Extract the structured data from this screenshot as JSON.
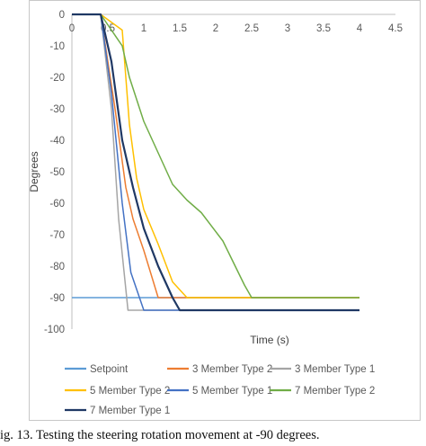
{
  "caption": "ig. 13.  Testing the steering rotation movement at -90 degrees.",
  "chart_data": {
    "type": "line",
    "xlabel": "Time (s)",
    "ylabel": "Degrees",
    "xlim": [
      0,
      4.5
    ],
    "ylim": [
      -100,
      0
    ],
    "x_ticks": [
      "0",
      "0.5",
      "1",
      "1.5",
      "2",
      "2.5",
      "3",
      "3.5",
      "4",
      "4.5"
    ],
    "y_ticks": [
      "0",
      "-10",
      "-20",
      "-30",
      "-40",
      "-50",
      "-60",
      "-70",
      "-80",
      "-90",
      "-100"
    ],
    "x_axis_position": "top",
    "grid": false,
    "legend_position": "bottom",
    "series": [
      {
        "name": "Setpoint",
        "color": "#5b9bd5",
        "width": 1.5,
        "points": [
          [
            0,
            -90
          ],
          [
            4,
            -90
          ]
        ]
      },
      {
        "name": "3 Member Type 2",
        "color": "#ed7d31",
        "width": 1.5,
        "points": [
          [
            0,
            0
          ],
          [
            0.4,
            0
          ],
          [
            0.6,
            -30
          ],
          [
            0.75,
            -55
          ],
          [
            0.85,
            -65
          ],
          [
            1.0,
            -75
          ],
          [
            1.2,
            -90
          ],
          [
            4,
            -90
          ]
        ]
      },
      {
        "name": "3 Member Type 1",
        "color": "#a5a5a5",
        "width": 1.5,
        "points": [
          [
            0,
            0
          ],
          [
            0.4,
            0
          ],
          [
            0.55,
            -30
          ],
          [
            0.65,
            -65
          ],
          [
            0.78,
            -94
          ],
          [
            4,
            -94
          ]
        ]
      },
      {
        "name": "5 Member Type 2",
        "color": "#ffc000",
        "width": 1.5,
        "points": [
          [
            0,
            0
          ],
          [
            0.4,
            0
          ],
          [
            0.7,
            -5
          ],
          [
            0.8,
            -35
          ],
          [
            0.9,
            -52
          ],
          [
            1.0,
            -62
          ],
          [
            1.2,
            -73
          ],
          [
            1.4,
            -85
          ],
          [
            1.6,
            -90
          ],
          [
            4,
            -90
          ]
        ]
      },
      {
        "name": "5 Member Type 1",
        "color": "#4472c4",
        "width": 1.5,
        "points": [
          [
            0,
            0
          ],
          [
            0.4,
            0
          ],
          [
            0.55,
            -25
          ],
          [
            0.7,
            -60
          ],
          [
            0.82,
            -82
          ],
          [
            1.0,
            -94
          ],
          [
            4,
            -94
          ]
        ]
      },
      {
        "name": "7 Member Type 2",
        "color": "#70ad47",
        "width": 1.5,
        "points": [
          [
            0,
            0
          ],
          [
            0.4,
            0
          ],
          [
            0.7,
            -10
          ],
          [
            0.8,
            -20
          ],
          [
            0.9,
            -27
          ],
          [
            1.0,
            -34
          ],
          [
            1.2,
            -44
          ],
          [
            1.4,
            -54
          ],
          [
            1.6,
            -59
          ],
          [
            1.8,
            -63
          ],
          [
            2.1,
            -72
          ],
          [
            2.4,
            -86
          ],
          [
            2.5,
            -90
          ],
          [
            4,
            -90
          ]
        ]
      },
      {
        "name": "7 Member Type 1",
        "color": "#1f3864",
        "width": 2.2,
        "points": [
          [
            0,
            0
          ],
          [
            0.4,
            0
          ],
          [
            0.55,
            -15
          ],
          [
            0.7,
            -40
          ],
          [
            0.85,
            -55
          ],
          [
            1.0,
            -68
          ],
          [
            1.2,
            -80
          ],
          [
            1.4,
            -90
          ],
          [
            1.5,
            -94
          ],
          [
            4,
            -94
          ]
        ]
      }
    ]
  }
}
